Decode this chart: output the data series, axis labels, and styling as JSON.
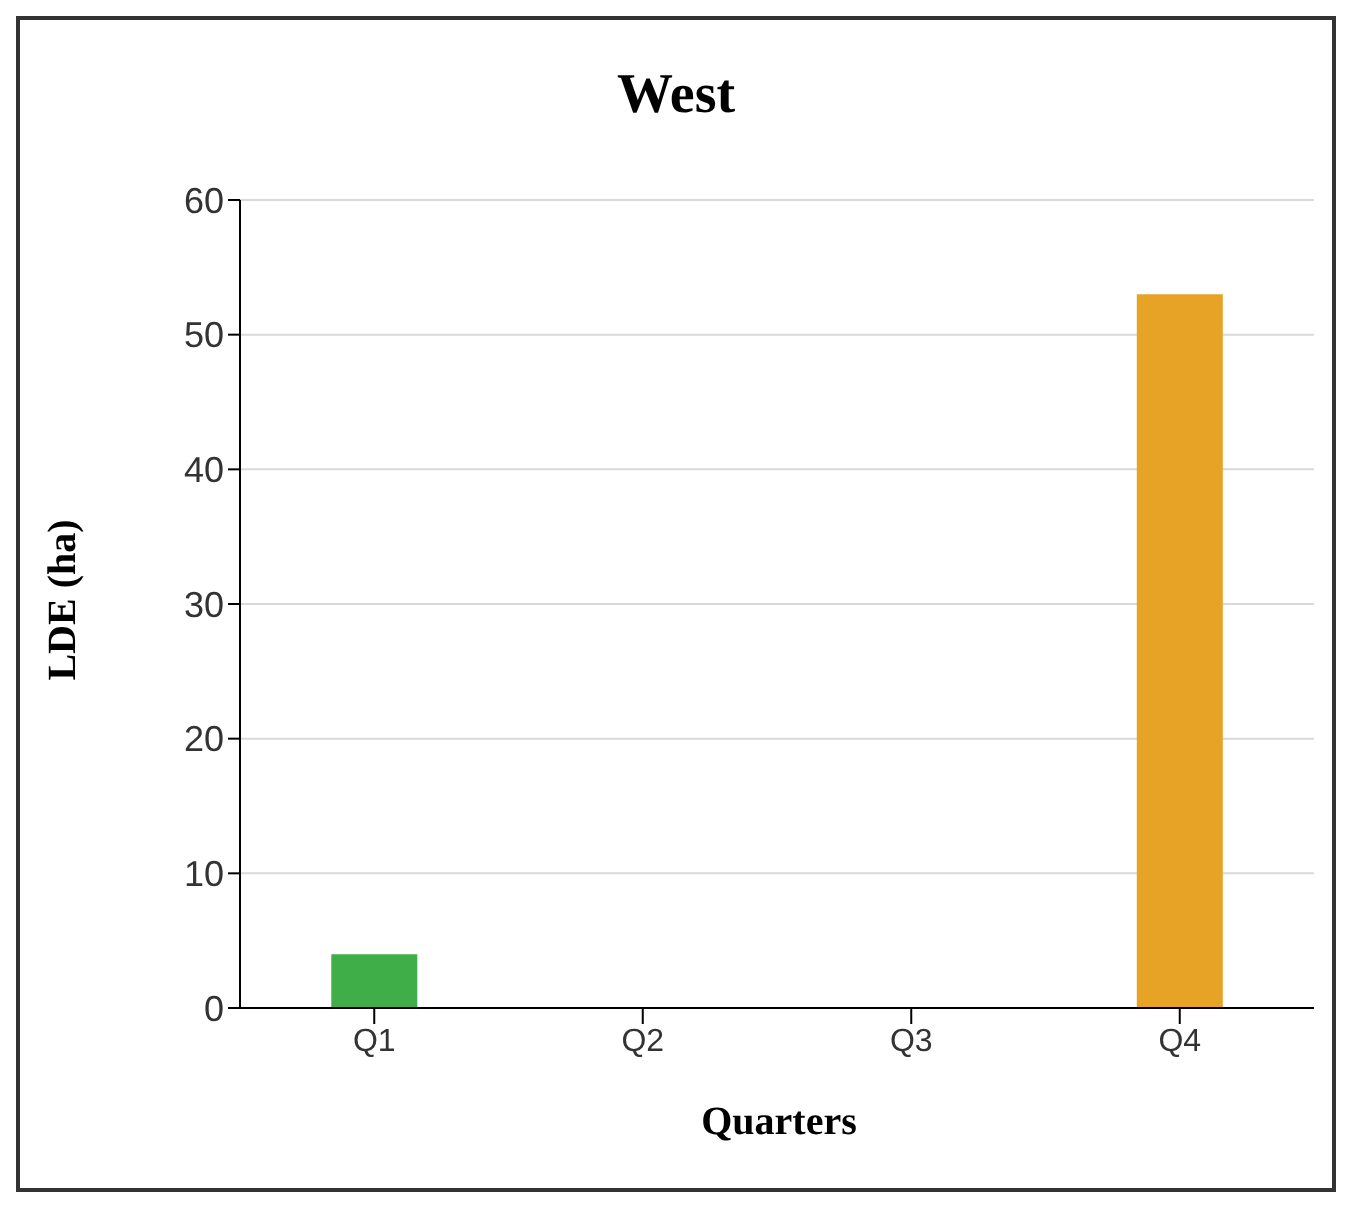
{
  "chart_data": {
    "type": "bar",
    "title": "West",
    "xlabel": "Quarters",
    "ylabel": "LDE (ha)",
    "categories": [
      "Q1",
      "Q2",
      "Q3",
      "Q4"
    ],
    "values": [
      4,
      0,
      0,
      53
    ],
    "colors": [
      "#3fae49",
      "#3fae49",
      "#3fae49",
      "#e6a325"
    ],
    "ylim": [
      0,
      60
    ],
    "yticks": [
      0,
      10,
      20,
      30,
      40,
      50,
      60
    ],
    "grid": "y"
  }
}
